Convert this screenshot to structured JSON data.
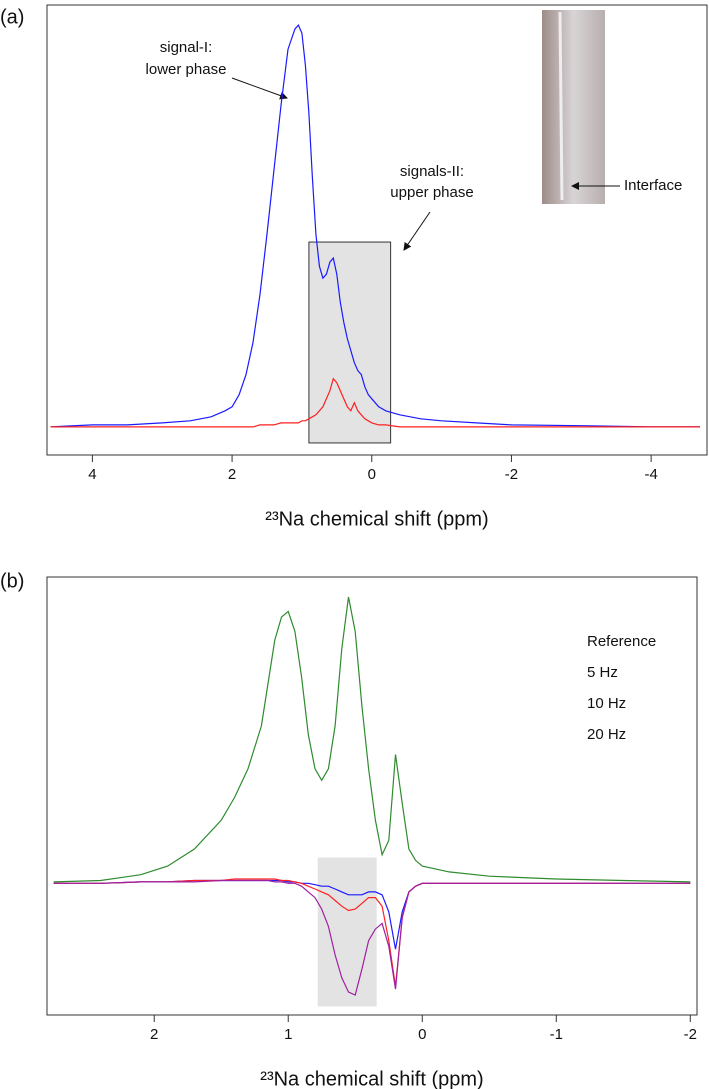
{
  "chart_data": [
    {
      "type": "line",
      "panel_label": "(a)",
      "xlabel": "²³Na chemical shift (ppm)",
      "x": [
        4.6,
        4,
        3.5,
        3,
        2.6,
        2.3,
        2.1,
        2.0,
        1.9,
        1.8,
        1.7,
        1.6,
        1.5,
        1.4,
        1.3,
        1.2,
        1.1,
        1.05,
        1.0,
        0.95,
        0.9,
        0.85,
        0.8,
        0.75,
        0.7,
        0.65,
        0.6,
        0.55,
        0.5,
        0.45,
        0.4,
        0.35,
        0.3,
        0.25,
        0.2,
        0.15,
        0.1,
        0.05,
        0,
        -0.1,
        -0.2,
        -0.4,
        -0.7,
        -1,
        -1.5,
        -2,
        -3,
        -4,
        -4.7
      ],
      "series": [
        {
          "color": "#1a1aff",
          "values": [
            0,
            0.5,
            0.5,
            1,
            1.5,
            2.5,
            4,
            5,
            8,
            13,
            21,
            33,
            48,
            64,
            80,
            94,
            99,
            100,
            98,
            90,
            78,
            62,
            48,
            40,
            37,
            38,
            41,
            42,
            38,
            31,
            26,
            22,
            19,
            16,
            14,
            13,
            10,
            8,
            7,
            5,
            4,
            3,
            2,
            1.5,
            1,
            0.5,
            0.3,
            0,
            0
          ]
        },
        {
          "color": "#ff2020",
          "values": [
            0,
            0,
            0,
            0,
            0,
            0,
            0,
            0,
            0,
            0,
            0,
            0.5,
            0.5,
            0.5,
            1,
            1,
            1,
            1,
            1.5,
            1.5,
            2,
            2.5,
            3,
            4,
            5,
            7,
            9,
            12,
            11,
            9,
            7,
            5,
            4,
            6,
            4,
            3,
            2,
            1.5,
            1,
            0.5,
            0.5,
            0,
            0,
            0,
            0,
            0,
            0,
            0,
            0
          ]
        }
      ],
      "xlim": [
        4.65,
        -4.8
      ],
      "ylim": [
        -7,
        105
      ],
      "xticks": [
        4,
        2,
        0,
        -2,
        -4
      ],
      "shaded_region": {
        "xlim": [
          0.9,
          -0.27
        ],
        "ylim": [
          -4,
          46
        ]
      },
      "annotations": [
        "signal-I:",
        "lower phase",
        "signals-II:",
        "upper phase",
        "Interface"
      ]
    },
    {
      "type": "line",
      "panel_label": "(b)",
      "xlabel": "²³Na chemical shift (ppm)",
      "x": [
        2.75,
        2.4,
        2.1,
        1.9,
        1.7,
        1.5,
        1.4,
        1.3,
        1.2,
        1.15,
        1.1,
        1.05,
        1.0,
        0.95,
        0.9,
        0.85,
        0.8,
        0.75,
        0.7,
        0.65,
        0.6,
        0.55,
        0.5,
        0.45,
        0.4,
        0.35,
        0.3,
        0.25,
        0.2,
        0.15,
        0.1,
        0.05,
        0,
        -0.2,
        -0.5,
        -1,
        -1.5,
        -2.0
      ],
      "series": [
        {
          "name": "Reference",
          "color": "#2e8b2e",
          "values": [
            0.5,
            1,
            3,
            6,
            12,
            22,
            30,
            40,
            55,
            70,
            85,
            93,
            95,
            88,
            72,
            52,
            40,
            36,
            40,
            55,
            82,
            100,
            88,
            62,
            40,
            22,
            10,
            15,
            45,
            28,
            12,
            8,
            6,
            4,
            2.5,
            1.5,
            1,
            0.5
          ]
        },
        {
          "name": "5 Hz",
          "color": "#1a1aff",
          "values": [
            0,
            0,
            0.5,
            0.5,
            1,
            1,
            1,
            1,
            1,
            1,
            1,
            1,
            0.5,
            0.5,
            0,
            0,
            -0.5,
            -1,
            -1,
            -2,
            -3,
            -4,
            -4,
            -4,
            -3,
            -3,
            -4,
            -10,
            -23,
            -10,
            -3,
            -1,
            0,
            0,
            0,
            0,
            0,
            0
          ]
        },
        {
          "name": "10 Hz",
          "color": "#ff2020",
          "values": [
            0,
            0,
            0.5,
            0.5,
            1,
            1,
            1.5,
            1.5,
            1.5,
            1.5,
            1.5,
            1,
            1,
            0.5,
            0,
            -1,
            -2,
            -3,
            -4,
            -6,
            -8,
            -9.5,
            -9,
            -7,
            -5,
            -5,
            -8,
            -20,
            -36,
            -12,
            -3,
            -1,
            0,
            0,
            0,
            0,
            0,
            0
          ]
        },
        {
          "name": "20 Hz",
          "color": "#a020a0",
          "values": [
            0,
            0,
            0.5,
            0.5,
            0.5,
            1,
            1,
            1,
            1,
            1,
            0.5,
            0.5,
            0,
            0,
            -1,
            -3,
            -5,
            -9,
            -15,
            -25,
            -33,
            -38,
            -39,
            -30,
            -20,
            -16,
            -14,
            -22,
            -37,
            -12,
            -3,
            -1,
            0,
            0,
            0,
            0,
            0,
            0
          ]
        }
      ],
      "xlim": [
        2.8,
        -2.05
      ],
      "ylim": [
        -46,
        107
      ],
      "xticks": [
        2,
        1,
        0,
        -1,
        -2
      ],
      "shaded_region": {
        "xlim": [
          0.78,
          0.34
        ],
        "ylim": [
          -43,
          9
        ]
      },
      "legend": "upper right"
    }
  ]
}
